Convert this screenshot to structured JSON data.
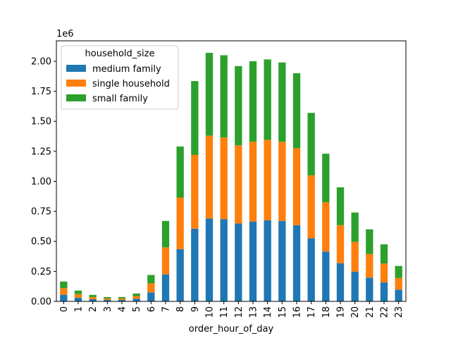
{
  "chart_data": {
    "type": "bar",
    "stacked": true,
    "categories": [
      "0",
      "1",
      "2",
      "3",
      "4",
      "5",
      "6",
      "7",
      "8",
      "9",
      "10",
      "11",
      "12",
      "13",
      "14",
      "15",
      "16",
      "17",
      "18",
      "19",
      "20",
      "21",
      "22",
      "23"
    ],
    "series": [
      {
        "name": "medium family",
        "color": "#1f77b4",
        "values": [
          0.055,
          0.03,
          0.018,
          0.012,
          0.012,
          0.022,
          0.075,
          0.225,
          0.435,
          0.605,
          0.69,
          0.685,
          0.648,
          0.665,
          0.675,
          0.67,
          0.635,
          0.525,
          0.415,
          0.318,
          0.248,
          0.198,
          0.158,
          0.098
        ]
      },
      {
        "name": "single household",
        "color": "#ff7f0e",
        "values": [
          0.055,
          0.03,
          0.018,
          0.012,
          0.012,
          0.022,
          0.075,
          0.225,
          0.43,
          0.615,
          0.69,
          0.68,
          0.652,
          0.665,
          0.67,
          0.66,
          0.64,
          0.525,
          0.41,
          0.317,
          0.247,
          0.197,
          0.157,
          0.097
        ]
      },
      {
        "name": "small family",
        "color": "#2ca02c",
        "values": [
          0.055,
          0.03,
          0.018,
          0.012,
          0.012,
          0.022,
          0.07,
          0.22,
          0.425,
          0.615,
          0.69,
          0.685,
          0.66,
          0.67,
          0.67,
          0.66,
          0.625,
          0.52,
          0.405,
          0.315,
          0.245,
          0.205,
          0.16,
          0.1
        ]
      }
    ],
    "title": "",
    "xlabel": "order_hour_of_day",
    "ylabel": "",
    "y_scale_label": "1e6",
    "ylim": [
      0,
      2.17
    ],
    "yticks": [
      "0.00",
      "0.25",
      "0.50",
      "0.75",
      "1.00",
      "1.25",
      "1.50",
      "1.75",
      "2.00"
    ],
    "legend": {
      "title": "household_size",
      "placement": "top-left"
    },
    "grid": false
  }
}
